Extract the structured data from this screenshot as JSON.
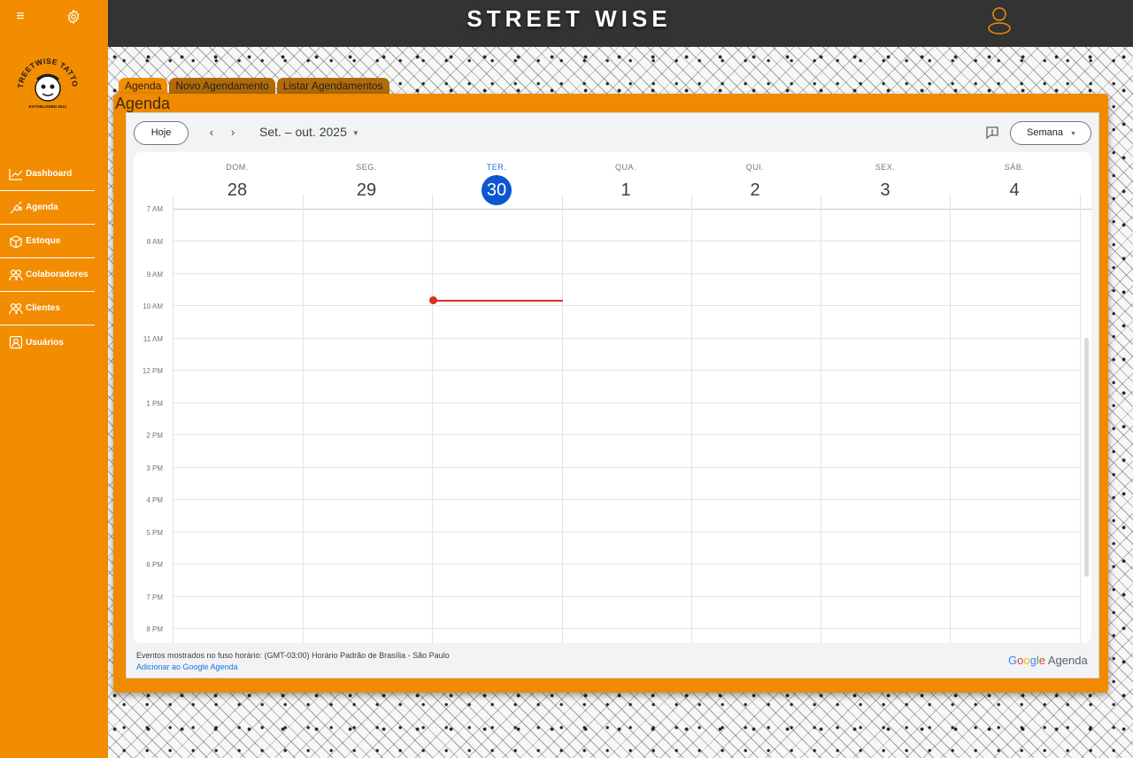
{
  "brand": "STREET WISE",
  "logo_text": "STREETWISE TATTOO",
  "logo_sub": "ESTABLISHED 2021",
  "sidebar": {
    "items": [
      {
        "label": "Dashboard",
        "icon": "chart-line-icon"
      },
      {
        "label": "Agenda",
        "icon": "tattoo-machine-icon"
      },
      {
        "label": "Estoque",
        "icon": "box-icon"
      },
      {
        "label": "Colaboradores",
        "icon": "people-icon"
      },
      {
        "label": "Clientes",
        "icon": "people-icon"
      },
      {
        "label": "Usuários",
        "icon": "user-card-icon"
      }
    ]
  },
  "tabs": [
    "Agenda",
    "Novo Agendamento",
    "Listar Agendamentos"
  ],
  "page_title": "Agenda",
  "calendar": {
    "today_button": "Hoje",
    "prev_icon": "‹",
    "next_icon": "›",
    "range_label": "Set. – out. 2025",
    "view_button": "Semana",
    "days": [
      {
        "name": "DOM.",
        "num": "28"
      },
      {
        "name": "SEG.",
        "num": "29"
      },
      {
        "name": "TER.",
        "num": "30",
        "today": true
      },
      {
        "name": "QUA.",
        "num": "1"
      },
      {
        "name": "QUI.",
        "num": "2"
      },
      {
        "name": "SEX.",
        "num": "3"
      },
      {
        "name": "SÁB.",
        "num": "4"
      }
    ],
    "times": [
      "7 AM",
      "8 AM",
      "9 AM",
      "10 AM",
      "11 AM",
      "12 PM",
      "1 PM",
      "2 PM",
      "3 PM",
      "4 PM",
      "5 PM",
      "6 PM",
      "7 PM",
      "8 PM"
    ],
    "timezone_note": "Eventos mostrados no fuso horário: (GMT-03:00) Horário Padrão de Brasília - São Paulo",
    "add_link": "Adicionar ao Google Agenda",
    "google_brand": "Google",
    "google_product": "Agenda"
  },
  "colors": {
    "accent": "#f28c00",
    "header": "#333333",
    "today": "#0b57d0",
    "now_line": "#d93025"
  }
}
